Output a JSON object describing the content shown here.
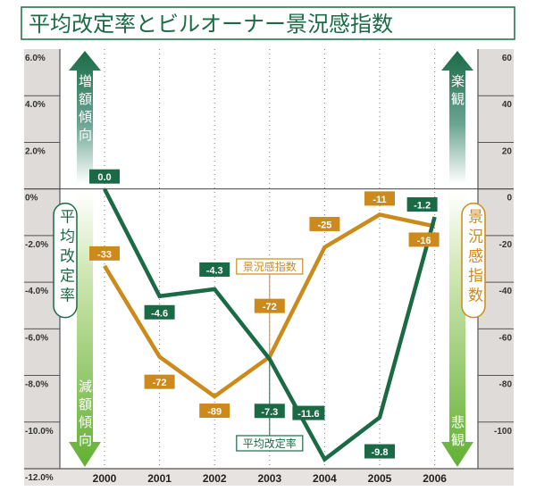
{
  "chart_data": {
    "type": "line",
    "title": "平均改定率とビルオーナー景況感指数",
    "categories": [
      "2000",
      "2001",
      "2002",
      "2003",
      "2004",
      "2005",
      "2006"
    ],
    "left_axis": {
      "ticks": [
        "6.0%",
        "4.0%",
        "2.0%",
        "0%",
        "-2.0%",
        "-4.0%",
        "-6.0%",
        "-8.0%",
        "-10.0%",
        "-12.0%"
      ],
      "ylim": [
        -12,
        6
      ]
    },
    "right_axis": {
      "ticks": [
        "60",
        "40",
        "20",
        "0",
        "-20",
        "-40",
        "-60",
        "-80",
        "-100"
      ],
      "ylim": [
        -120,
        60
      ]
    },
    "series": [
      {
        "name": "平均改定率",
        "axis": "left",
        "color": "#1b6a46",
        "values": [
          0.0,
          -4.6,
          -4.3,
          -7.3,
          -11.6,
          -9.8,
          -1.2
        ],
        "labels": [
          "0.0",
          "-4.6",
          "-4.3",
          "-7.3",
          "-11.6",
          "-9.8",
          "-1.2"
        ]
      },
      {
        "name": "景況感指数",
        "axis": "right",
        "color": "#cc8a1c",
        "values": [
          -33,
          -72,
          -89,
          -72,
          -25,
          -11,
          -16
        ],
        "labels": [
          "-33",
          "-72",
          "-89",
          "-72",
          "-25",
          "-11",
          "-16"
        ]
      }
    ],
    "grid": true,
    "annotations": {
      "left_up": "増額傾向",
      "left_down": "減額傾向",
      "left_badge": "平均改定率",
      "right_up": "楽観",
      "right_down": "悲観",
      "right_badge": "景況感指数"
    }
  }
}
